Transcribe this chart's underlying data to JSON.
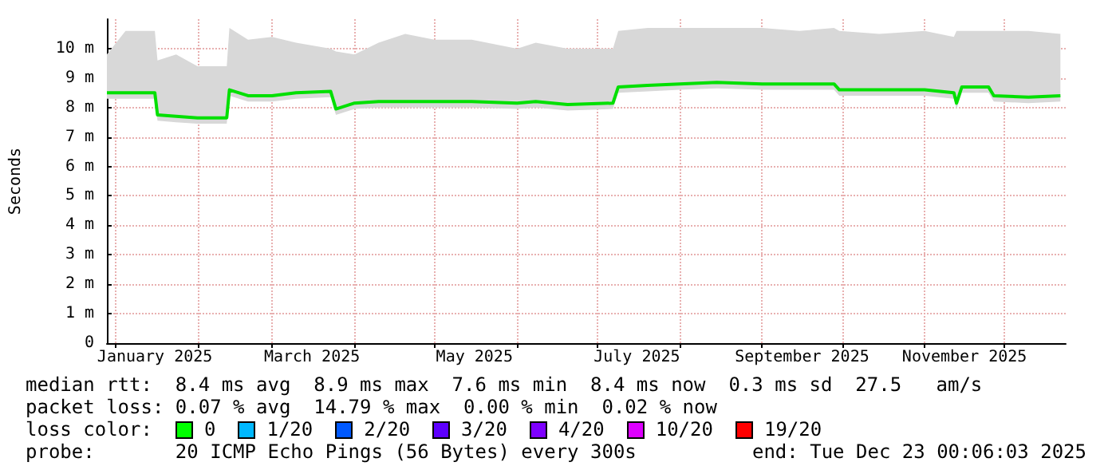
{
  "chart_data": {
    "type": "line",
    "ylabel": "Seconds",
    "x": [
      "2024-12-29",
      "2025-01-05",
      "2025-01-16",
      "2025-01-17",
      "2025-01-24",
      "2025-02-01",
      "2025-02-12",
      "2025-02-13",
      "2025-02-20",
      "2025-03-01",
      "2025-03-10",
      "2025-03-23",
      "2025-03-25",
      "2025-04-01",
      "2025-04-10",
      "2025-04-20",
      "2025-05-01",
      "2025-05-15",
      "2025-06-01",
      "2025-06-08",
      "2025-06-20",
      "2025-07-07",
      "2025-07-09",
      "2025-07-20",
      "2025-08-01",
      "2025-08-15",
      "2025-09-01",
      "2025-09-15",
      "2025-09-28",
      "2025-09-30",
      "2025-10-15",
      "2025-11-01",
      "2025-11-12",
      "2025-11-13",
      "2025-11-15",
      "2025-11-25",
      "2025-11-27",
      "2025-12-10",
      "2025-12-22"
    ],
    "series": [
      {
        "color": "#00e000",
        "values": [
          8.5,
          8.5,
          8.5,
          7.75,
          7.7,
          7.65,
          7.65,
          8.6,
          8.4,
          8.4,
          8.5,
          8.55,
          7.95,
          8.15,
          8.2,
          8.2,
          8.2,
          8.2,
          8.15,
          8.2,
          8.1,
          8.15,
          8.7,
          8.75,
          8.8,
          8.85,
          8.8,
          8.8,
          8.8,
          8.6,
          8.6,
          8.6,
          8.5,
          8.15,
          8.7,
          8.7,
          8.4,
          8.35,
          8.4
        ],
        "lower": [
          8.3,
          8.3,
          8.3,
          7.55,
          7.5,
          7.45,
          7.45,
          8.4,
          8.2,
          8.2,
          8.3,
          8.35,
          7.75,
          7.95,
          8.0,
          8.0,
          8.0,
          8.0,
          7.95,
          8.0,
          7.9,
          7.95,
          8.5,
          8.55,
          8.6,
          8.65,
          8.6,
          8.6,
          8.6,
          8.4,
          8.4,
          8.4,
          8.3,
          7.95,
          8.5,
          8.5,
          8.2,
          8.15,
          8.2
        ],
        "upper": [
          9.8,
          10.6,
          10.6,
          9.6,
          9.8,
          9.4,
          9.4,
          10.7,
          10.3,
          10.4,
          10.2,
          10.0,
          9.9,
          9.8,
          10.2,
          10.5,
          10.3,
          10.3,
          10.0,
          10.2,
          10.0,
          10.0,
          10.6,
          10.7,
          10.7,
          10.7,
          10.7,
          10.6,
          10.7,
          10.6,
          10.5,
          10.6,
          10.4,
          10.6,
          10.6,
          10.6,
          10.6,
          10.6,
          10.5
        ]
      }
    ],
    "xlim": [
      "2024-12-29",
      "2025-12-24"
    ],
    "xticks": [
      {
        "value": "2025-01-01",
        "label": null
      },
      {
        "value": "2025-02-01",
        "label": null
      },
      {
        "value": "2025-03-01",
        "label": null
      },
      {
        "value": "2025-04-01",
        "label": null
      },
      {
        "value": "2025-05-01",
        "label": null
      },
      {
        "value": "2025-06-01",
        "label": null
      },
      {
        "value": "2025-07-01",
        "label": null
      },
      {
        "value": "2025-08-01",
        "label": null
      },
      {
        "value": "2025-09-01",
        "label": null
      },
      {
        "value": "2025-10-01",
        "label": null
      },
      {
        "value": "2025-11-01",
        "label": null
      },
      {
        "value": "2025-12-01",
        "label": null
      },
      {
        "value": "2025-01-16",
        "label": "January 2025"
      },
      {
        "value": "2025-03-16",
        "label": "March 2025"
      },
      {
        "value": "2025-05-16",
        "label": "May 2025"
      },
      {
        "value": "2025-07-16",
        "label": "July 2025"
      },
      {
        "value": "2025-09-16",
        "label": "September 2025"
      },
      {
        "value": "2025-11-16",
        "label": "November 2025"
      }
    ],
    "ylim": [
      0,
      11
    ],
    "yticks": [
      {
        "value": 0,
        "label": "0"
      },
      {
        "value": 1,
        "label": "1 m"
      },
      {
        "value": 2,
        "label": "2 m"
      },
      {
        "value": 3,
        "label": "3 m"
      },
      {
        "value": 4,
        "label": "4 m"
      },
      {
        "value": 5,
        "label": "5 m"
      },
      {
        "value": 6,
        "label": "6 m"
      },
      {
        "value": 7,
        "label": "7 m"
      },
      {
        "value": 8,
        "label": "8 m"
      },
      {
        "value": 9,
        "label": "9 m"
      },
      {
        "value": 10,
        "label": "10 m"
      }
    ],
    "grid": true,
    "annotations": [
      "median rtt:  8.4 ms avg  8.9 ms max  7.6 ms min  8.4 ms now  0.3 ms sd  27.5   am/s",
      "packet loss: 0.07 % avg  14.79 % max  0.00 % min  0.02 % now",
      "loss color:",
      "0",
      "1/20",
      "2/20",
      "3/20",
      "4/20",
      "10/20",
      "19/20",
      "probe:       20 ICMP Echo Pings (56 Bytes) every 300s",
      "end: Tue Dec 23 00:06:03 2025"
    ]
  }
}
